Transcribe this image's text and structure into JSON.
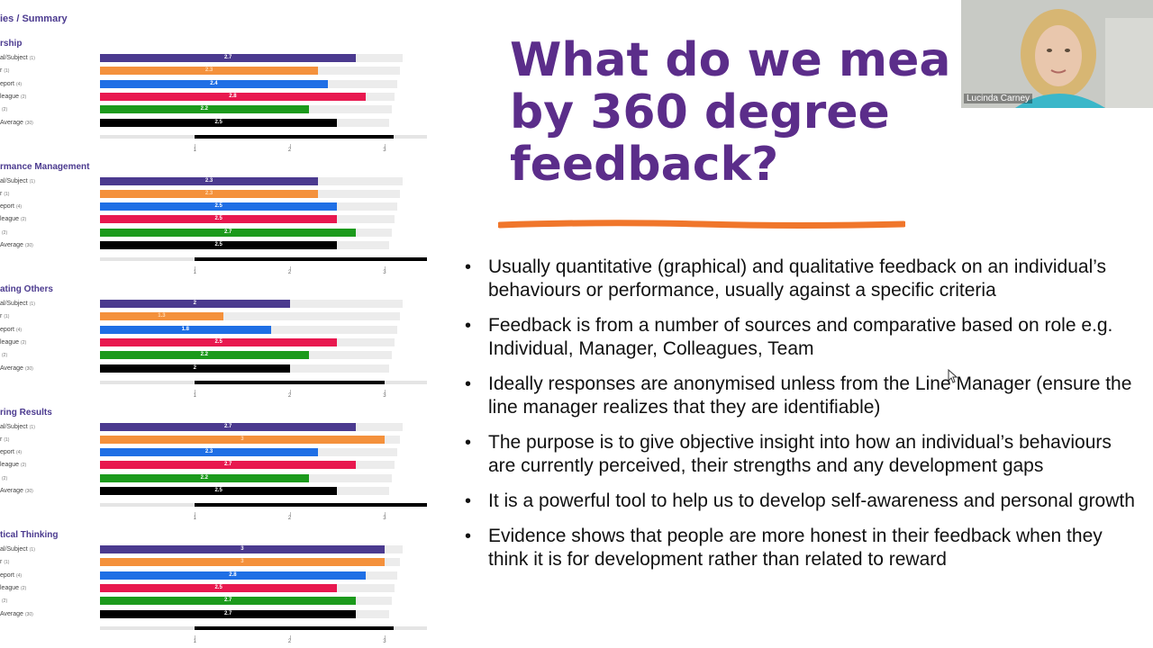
{
  "chart_panel": {
    "breadcrumb": "ies / Summary",
    "axis_ticks": [
      "1",
      "2",
      "3"
    ],
    "colors": [
      "#4b3a8f",
      "#f4913c",
      "#1f6fe5",
      "#e8184f",
      "#1c9a1c",
      "#000000"
    ]
  },
  "chart_data": {
    "type": "bar",
    "xlim": [
      0,
      3
    ],
    "sections": [
      {
        "title": "rship",
        "rows": [
          {
            "label": "al/Subject",
            "n": "(1)",
            "value": 2.7
          },
          {
            "label": "r",
            "n": "(1)",
            "value": 2.3
          },
          {
            "label": "eport",
            "n": "(4)",
            "value": 2.4
          },
          {
            "label": "league",
            "n": "(2)",
            "value": 2.8
          },
          {
            "label": "",
            "n": "(2)",
            "value": 2.2
          },
          {
            "label": "Average",
            "n": "(30)",
            "value": 2.5
          }
        ],
        "baseline": [
          1.0,
          3.1
        ]
      },
      {
        "title": "rmance Management",
        "rows": [
          {
            "label": "al/Subject",
            "n": "(1)",
            "value": 2.3
          },
          {
            "label": "r",
            "n": "(1)",
            "value": 2.3
          },
          {
            "label": "eport",
            "n": "(4)",
            "value": 2.5
          },
          {
            "label": "league",
            "n": "(2)",
            "value": 2.5
          },
          {
            "label": "",
            "n": "(2)",
            "value": 2.7
          },
          {
            "label": "Average",
            "n": "(30)",
            "value": 2.5
          }
        ],
        "baseline": [
          1.0,
          3.45
        ]
      },
      {
        "title": "ating Others",
        "rows": [
          {
            "label": "al/Subject",
            "n": "(1)",
            "value": 2
          },
          {
            "label": "r",
            "n": "(1)",
            "value": 1.3
          },
          {
            "label": "eport",
            "n": "(4)",
            "value": 1.8
          },
          {
            "label": "league",
            "n": "(2)",
            "value": 2.5
          },
          {
            "label": "",
            "n": "(2)",
            "value": 2.2
          },
          {
            "label": "Average",
            "n": "(30)",
            "value": 2
          }
        ],
        "baseline": [
          1.0,
          3.0
        ]
      },
      {
        "title": "ring Results",
        "rows": [
          {
            "label": "al/Subject",
            "n": "(1)",
            "value": 2.7
          },
          {
            "label": "r",
            "n": "(1)",
            "value": 3
          },
          {
            "label": "eport",
            "n": "(4)",
            "value": 2.3
          },
          {
            "label": "league",
            "n": "(2)",
            "value": 2.7
          },
          {
            "label": "",
            "n": "(2)",
            "value": 2.2
          },
          {
            "label": "Average",
            "n": "(30)",
            "value": 2.5
          }
        ],
        "baseline": [
          1.0,
          3.45
        ]
      },
      {
        "title": "tical Thinking",
        "rows": [
          {
            "label": "al/Subject",
            "n": "(1)",
            "value": 3
          },
          {
            "label": "r",
            "n": "(1)",
            "value": 3
          },
          {
            "label": "eport",
            "n": "(4)",
            "value": 2.8
          },
          {
            "label": "league",
            "n": "(2)",
            "value": 2.5
          },
          {
            "label": "",
            "n": "(2)",
            "value": 2.7
          },
          {
            "label": "Average",
            "n": "(30)",
            "value": 2.7
          }
        ],
        "baseline": [
          1.0,
          3.1
        ]
      }
    ]
  },
  "slide": {
    "title": "What do we mea by 360 degree feedback?",
    "underline_color": "#f0762b",
    "title_color": "#5b2d8a",
    "bullets": [
      "Usually quantitative (graphical) and qualitative feedback on an individual’s behaviours or performance, usually against a specific criteria",
      "Feedback is from a number of sources and comparative based on role e.g. Individual, Manager, Colleagues, Team",
      "Ideally responses are anonymised unless from the Line Manager (ensure the line manager realizes that they are identifiable)",
      "The purpose is to give objective insight into how an individual’s behaviours are currently perceived, their strengths and any development gaps",
      "It is a powerful tool to help us to develop self-awareness and personal growth",
      "Evidence shows that people are more honest in their feedback when they think it is for development rather than related to reward"
    ],
    "bullet_glyph": "•"
  },
  "video": {
    "participant_name": "Lucinda Carney"
  }
}
